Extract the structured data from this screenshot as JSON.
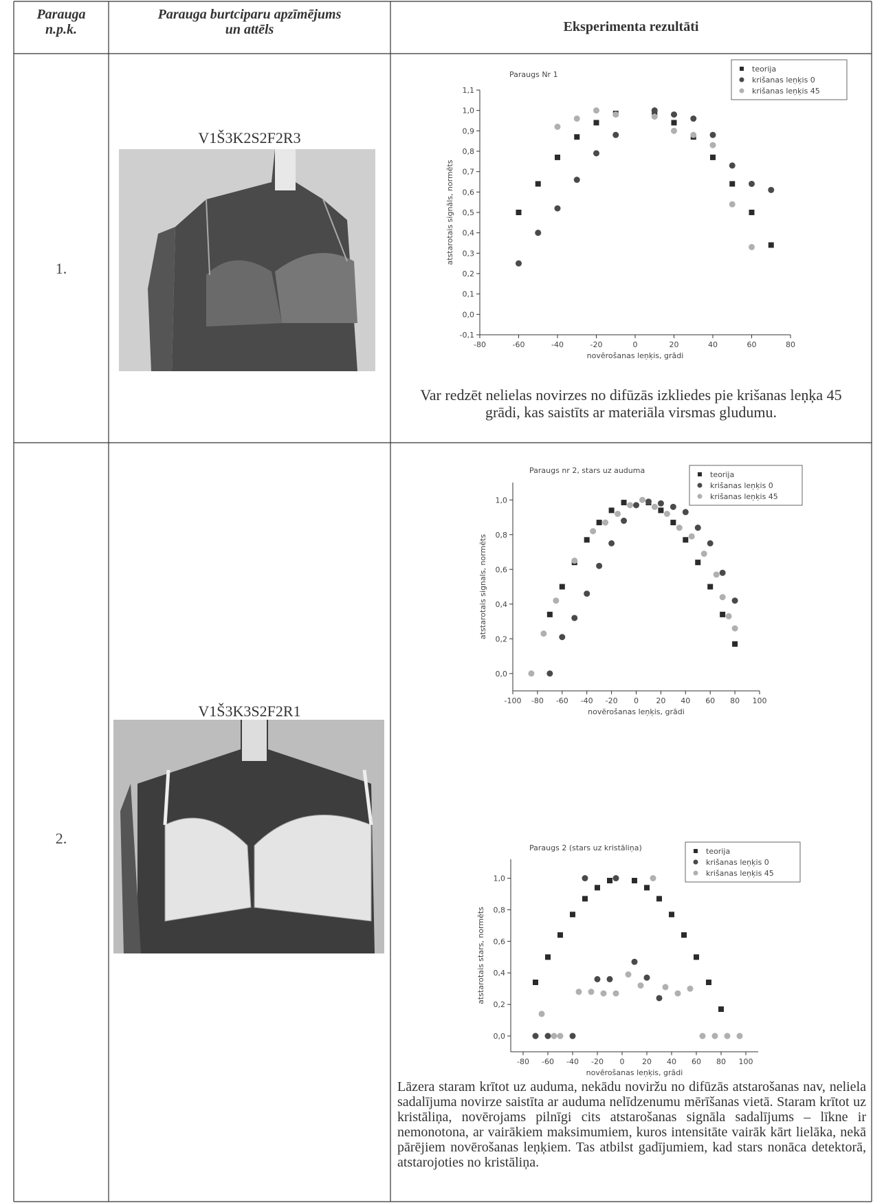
{
  "table": {
    "headers": [
      [
        "Parauga",
        "n.p.k."
      ],
      [
        "Parauga burtciparu apzīmējums",
        "un attēls"
      ],
      [
        "Eksperimenta rezultāti"
      ]
    ],
    "rows": [
      {
        "number": "1.",
        "code": "V1Š3K2S2F2R3",
        "text": "Var redzēt nelielas novirzes no difūzās izkliedes pie krišanas leņķa 45 grādi, kas saistīts ar materiāla virsmas gludumu."
      },
      {
        "number": "2.",
        "code": "V1Š3K3S2F2R1",
        "text": "Lāzera staram krītot uz auduma, nekādu noviržu no difūzās atstarošanas nav, neliela sadalījuma novirze saistīta ar auduma nelīdzenumu mērīšanas vietā. Staram krītot uz kristāliņa, novērojams pilnīgi cits atstarošanas signāla sadalījums – līkne ir nemonotona, ar vairākiem maksimumiem, kuros intensitāte vairāk kārt lielāka, nekā pārējiem novērošanas leņķiem. Tas atbilst gadījumiem, kad stars nonāca detektorā, atstarojoties no kristāliņa."
      }
    ]
  },
  "chart_data": [
    {
      "type": "scatter",
      "title": "Paraugs Nr 1",
      "x_label": "novērošanas leņķis, grādi",
      "y_label": "atstarotais signāls, normēts",
      "xlim": [
        -80,
        80
      ],
      "xticks": [
        -80,
        -60,
        -40,
        -20,
        0,
        20,
        40,
        60,
        80
      ],
      "ylim": [
        -0.1,
        1.1
      ],
      "yticks": [
        {
          "value": -0.1,
          "label": "-0,1"
        },
        {
          "value": 0,
          "label": "0,0"
        },
        {
          "value": 0.1,
          "label": "0,1"
        },
        {
          "value": 0.2,
          "label": "0,2"
        },
        {
          "value": 0.3,
          "label": "0,3"
        },
        {
          "value": 0.4,
          "label": "0,4"
        },
        {
          "value": 0.5,
          "label": "0,5"
        },
        {
          "value": 0.6,
          "label": "0,6"
        },
        {
          "value": 0.7,
          "label": "0,7"
        },
        {
          "value": 0.8,
          "label": "0,8"
        },
        {
          "value": 0.9,
          "label": "0,9"
        },
        {
          "value": 1.0,
          "label": "1,0"
        },
        {
          "value": 1.1,
          "label": "1,1"
        }
      ],
      "legend": "upper right",
      "series": [
        {
          "name": "teorija",
          "color": "#2b2b2b",
          "marker": "square",
          "x": [
            -60,
            -50,
            -40,
            -30,
            -20,
            -10,
            10,
            20,
            30,
            40,
            50,
            60,
            70
          ],
          "values": [
            0.5,
            0.64,
            0.77,
            0.87,
            0.94,
            0.985,
            0.985,
            0.94,
            0.87,
            0.77,
            0.64,
            0.5,
            0.34
          ]
        },
        {
          "name": "krišanas leņķis 0",
          "color": "#4a4a4a",
          "marker": "circle",
          "x": [
            -60,
            -50,
            -40,
            -30,
            -20,
            -10,
            10,
            20,
            30,
            40,
            50,
            60,
            70
          ],
          "values": [
            0.25,
            0.4,
            0.52,
            0.66,
            0.79,
            0.88,
            1.0,
            0.98,
            0.96,
            0.88,
            0.73,
            0.64,
            0.61
          ]
        },
        {
          "name": "krišanas leņķis 45",
          "color": "#b0b0b0",
          "marker": "circle",
          "x": [
            -40,
            -30,
            -20,
            -10,
            10,
            20,
            30,
            40,
            50,
            60
          ],
          "values": [
            0.92,
            0.96,
            1.0,
            0.98,
            0.97,
            0.9,
            0.88,
            0.83,
            0.54,
            0.33
          ]
        }
      ]
    },
    {
      "type": "scatter",
      "title": "Paraugs nr 2, stars uz auduma",
      "x_label": "novērošanas leņķis, grādi",
      "y_label": "atstarotais signals, normēts",
      "xlim": [
        -100,
        100
      ],
      "xticks": [
        -100,
        -80,
        -60,
        -40,
        -20,
        0,
        20,
        40,
        60,
        80,
        100
      ],
      "ylim": [
        -0.1,
        1.1
      ],
      "yticks": [
        {
          "value": 0,
          "label": "0,0"
        },
        {
          "value": 0.2,
          "label": "0,2"
        },
        {
          "value": 0.4,
          "label": "0,4"
        },
        {
          "value": 0.6,
          "label": "0,6"
        },
        {
          "value": 0.8,
          "label": "0,8"
        },
        {
          "value": 1.0,
          "label": "1,0"
        }
      ],
      "legend": "upper right",
      "series": [
        {
          "name": "teorija",
          "color": "#2b2b2b",
          "marker": "square",
          "x": [
            -70,
            -60,
            -50,
            -40,
            -30,
            -20,
            -10,
            10,
            20,
            30,
            40,
            50,
            60,
            70,
            80
          ],
          "values": [
            0.34,
            0.5,
            0.64,
            0.77,
            0.87,
            0.94,
            0.985,
            0.985,
            0.94,
            0.87,
            0.77,
            0.64,
            0.5,
            0.34,
            0.17
          ]
        },
        {
          "name": "krišanas leņķis 0",
          "color": "#4a4a4a",
          "marker": "circle",
          "x": [
            -70,
            -60,
            -50,
            -40,
            -30,
            -20,
            -10,
            0,
            10,
            20,
            30,
            40,
            50,
            60,
            70,
            80
          ],
          "values": [
            0,
            0.21,
            0.32,
            0.46,
            0.62,
            0.75,
            0.88,
            0.97,
            0.99,
            0.98,
            0.96,
            0.93,
            0.84,
            0.75,
            0.58,
            0.42
          ]
        },
        {
          "name": "krišanas leņķis 45",
          "color": "#b0b0b0",
          "marker": "circle",
          "x": [
            -85,
            -75,
            -65,
            -50,
            -35,
            -25,
            -15,
            -5,
            5,
            15,
            25,
            35,
            45,
            55,
            65,
            70,
            75,
            80
          ],
          "values": [
            0,
            0.23,
            0.42,
            0.65,
            0.82,
            0.87,
            0.92,
            0.97,
            1.0,
            0.96,
            0.92,
            0.84,
            0.79,
            0.69,
            0.57,
            0.44,
            0.33,
            0.26
          ]
        }
      ]
    },
    {
      "type": "scatter",
      "title": "Paraugs 2 (stars uz kristāliņa)",
      "x_label": "novērošanas leņķis, grādi",
      "y_label": "atstarotais stars, normēts",
      "xlim": [
        -90,
        110
      ],
      "xticks": [
        -80,
        -60,
        -40,
        -20,
        0,
        20,
        40,
        60,
        80,
        100
      ],
      "ylim": [
        -0.1,
        1.12
      ],
      "yticks": [
        {
          "value": 0,
          "label": "0,0"
        },
        {
          "value": 0.2,
          "label": "0,2"
        },
        {
          "value": 0.4,
          "label": "0,4"
        },
        {
          "value": 0.6,
          "label": "0,6"
        },
        {
          "value": 0.8,
          "label": "0,8"
        },
        {
          "value": 1.0,
          "label": "1,0"
        }
      ],
      "legend": "upper right",
      "series": [
        {
          "name": "teorija",
          "color": "#2b2b2b",
          "marker": "square",
          "x": [
            -70,
            -60,
            -50,
            -40,
            -30,
            -20,
            -10,
            10,
            20,
            30,
            40,
            50,
            60,
            70,
            80
          ],
          "values": [
            0.34,
            0.5,
            0.64,
            0.77,
            0.87,
            0.94,
            0.985,
            0.985,
            0.94,
            0.87,
            0.77,
            0.64,
            0.5,
            0.34,
            0.17
          ]
        },
        {
          "name": "krišanas leņķis 0",
          "color": "#4a4a4a",
          "marker": "circle",
          "x": [
            -70,
            -60,
            -40,
            -30,
            -20,
            -10,
            -5,
            10,
            20,
            30
          ],
          "values": [
            0,
            0,
            0,
            1.0,
            0.36,
            0.36,
            1.0,
            0.47,
            0.37,
            0.24
          ]
        },
        {
          "name": "krišanas leņķis 45",
          "color": "#b0b0b0",
          "marker": "circle",
          "x": [
            -65,
            -55,
            -50,
            -35,
            -25,
            -15,
            -5,
            5,
            15,
            25,
            35,
            45,
            55,
            65,
            75,
            85,
            95
          ],
          "values": [
            0.14,
            0,
            0,
            0.28,
            0.28,
            0.27,
            0.27,
            0.39,
            0.32,
            1.0,
            0.31,
            0.27,
            0.3,
            0,
            0,
            0,
            0
          ]
        }
      ]
    }
  ]
}
